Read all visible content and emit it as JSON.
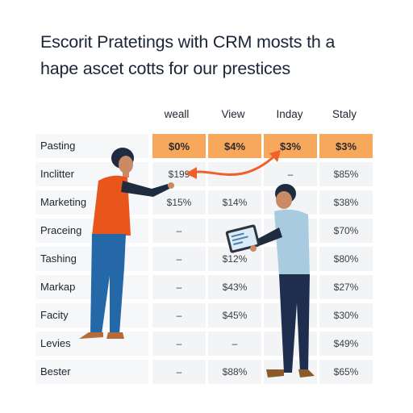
{
  "title": {
    "line1": "Escorit Pratetings with CRM mosts th a",
    "line2": "hape ascet cotts for our prestices"
  },
  "columns": [
    "weall",
    "View",
    "Inday",
    "Staly"
  ],
  "rows": [
    {
      "label": "Pasting",
      "cells": [
        "$0%",
        "$4%",
        "$3%",
        "$3%"
      ],
      "highlight": true
    },
    {
      "label": "Inclitter",
      "cells": [
        "$199",
        "–",
        "–",
        "$85%"
      ]
    },
    {
      "label": "Marketing",
      "cells": [
        "$15%",
        "$14%",
        "",
        "$38%"
      ]
    },
    {
      "label": "Praceing",
      "cells": [
        "–",
        "–",
        "",
        "$70%"
      ]
    },
    {
      "label": "Tashing",
      "cells": [
        "–",
        "$12%",
        "",
        "$80%"
      ]
    },
    {
      "label": "Markap",
      "cells": [
        "–",
        "$43%",
        "",
        "$27%"
      ]
    },
    {
      "label": "Facity",
      "cells": [
        "–",
        "$45%",
        "",
        "$30%"
      ]
    },
    {
      "label": "Levies",
      "cells": [
        "–",
        "–",
        "",
        "$49%"
      ]
    },
    {
      "label": "Bester",
      "cells": [
        "–",
        "$88%",
        "",
        "$65%"
      ]
    }
  ],
  "colors": {
    "highlight": "#f7a85c",
    "cell_bg": "#f3f4f6",
    "arrow": "#f0612a",
    "woman_shirt": "#e8561c",
    "woman_pants": "#2468a8",
    "man_shirt": "#a9cbe0",
    "man_pants": "#1f2d4f"
  },
  "icons": [
    "curved-arrow-icon",
    "tablet-icon",
    "person-pointing-illustration",
    "person-with-tablet-illustration"
  ]
}
